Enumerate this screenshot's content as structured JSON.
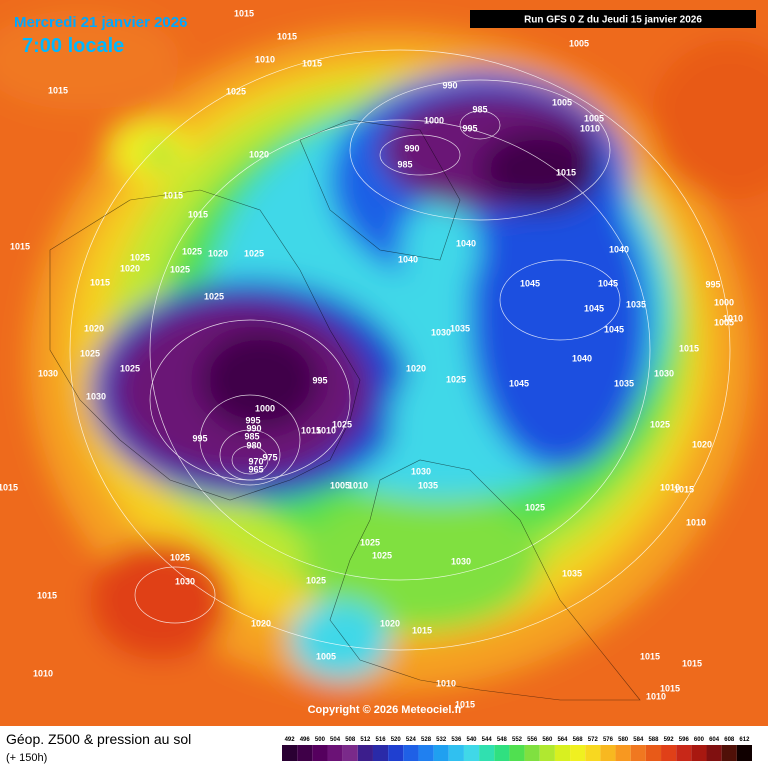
{
  "header": {
    "date": "Mercredi 21 janvier 2026",
    "time": "7:00 locale",
    "run": "Run GFS 0 Z du Jeudi 15 janvier 2026"
  },
  "copyright": "Copyright © 2026 Meteociel.fr",
  "footer": {
    "title": "Géop. Z500 & pression au sol",
    "lead": "(+ 150h)"
  },
  "isobar_labels": [
    1015,
    1015,
    1010,
    1015,
    1015,
    1025,
    990,
    985,
    1000,
    995,
    990,
    985,
    1005,
    1005,
    1010,
    1005,
    1020,
    1015,
    1015,
    1015,
    1015,
    1025,
    1025,
    1020,
    1025,
    1020,
    1025,
    1040,
    1040,
    1040,
    1045,
    1045,
    1015,
    1025,
    1035,
    995,
    1000,
    1005,
    1010,
    1045,
    1045,
    1035,
    1030,
    1020,
    1025,
    1015,
    1030,
    1025,
    1040,
    1020,
    1025,
    995,
    1045,
    1035,
    1030,
    1030,
    1000,
    995,
    990,
    985,
    995,
    1025,
    1010,
    1015,
    980,
    975,
    970,
    965,
    1025,
    1020,
    1030,
    1035,
    1005,
    1010,
    1015,
    1010,
    1015,
    1025,
    1010,
    1025,
    1025,
    1030,
    1025,
    1030,
    1035,
    1015,
    1025,
    1020,
    1020,
    1015,
    1005,
    1015,
    1015,
    1010,
    1010,
    1015,
    1010,
    1015
  ],
  "legend": {
    "values": [
      492,
      496,
      500,
      504,
      508,
      512,
      516,
      520,
      524,
      528,
      532,
      536,
      540,
      544,
      548,
      552,
      556,
      560,
      564,
      568,
      572,
      576,
      580,
      584,
      588,
      592,
      596,
      600,
      604,
      608,
      612
    ],
    "colors": [
      "#2a0033",
      "#3f0048",
      "#55005e",
      "#6b1276",
      "#7a2a8a",
      "#3c1e8c",
      "#2a2aa8",
      "#1f3fd0",
      "#1f60e6",
      "#2080f0",
      "#20a0f0",
      "#30c0f0",
      "#40d8e8",
      "#30e0b0",
      "#30e080",
      "#50e050",
      "#80e040",
      "#b0e830",
      "#d8f020",
      "#f0f020",
      "#f8d820",
      "#f8b820",
      "#f89820",
      "#f07820",
      "#e85a18",
      "#e04018",
      "#c82818",
      "#a81810",
      "#801010",
      "#501008",
      "#100000"
    ]
  }
}
